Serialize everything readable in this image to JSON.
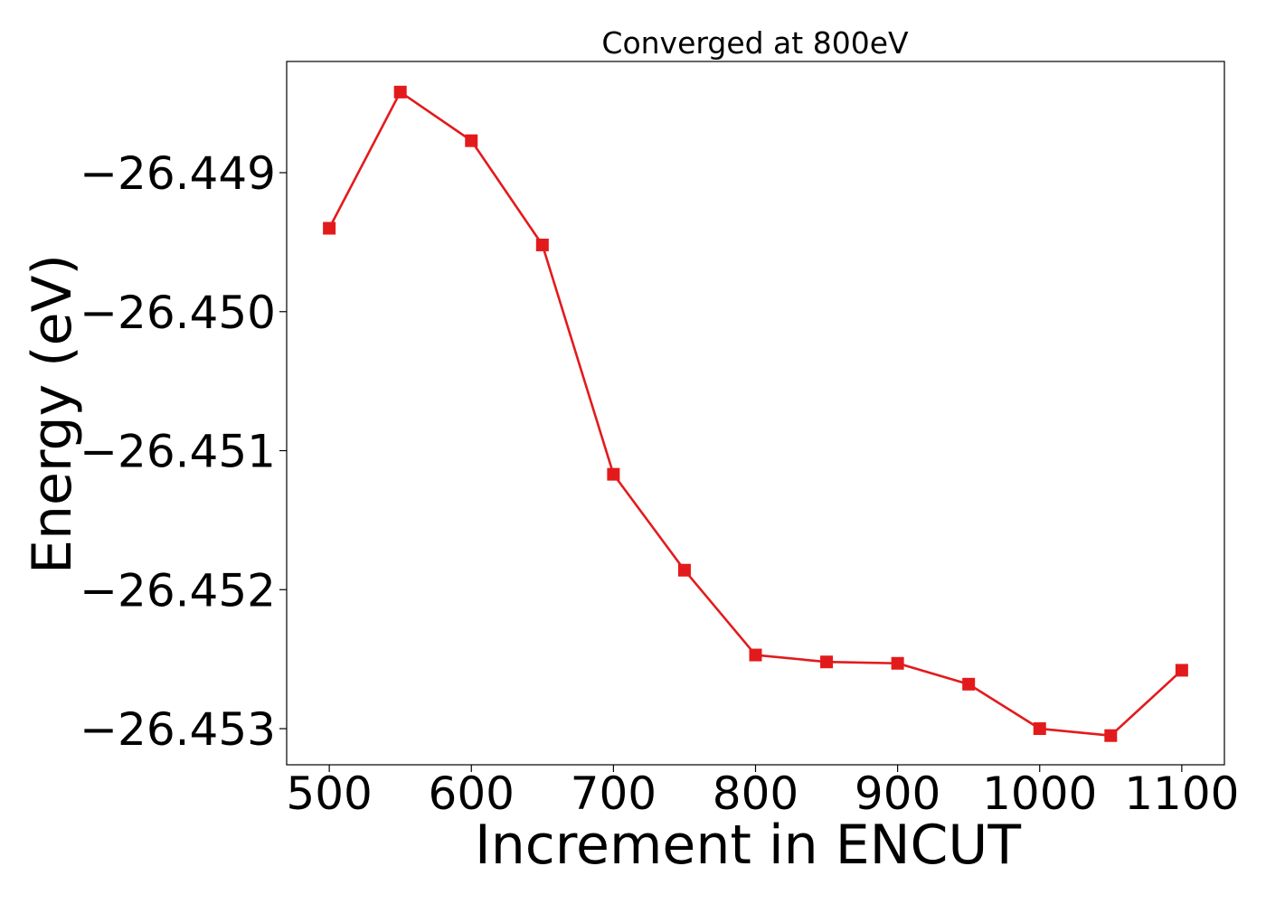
{
  "chart_data": {
    "type": "line",
    "title": "Converged at 800eV",
    "xlabel": "Increment in ENCUT",
    "ylabel": "Energy (eV)",
    "x_ticks": [
      "500",
      "600",
      "700",
      "800",
      "900",
      "1000",
      "1100"
    ],
    "y_ticks": [
      "−26.449",
      "−26.450",
      "−26.451",
      "−26.452",
      "−26.453"
    ],
    "xlim": [
      470,
      1130
    ],
    "ylim": [
      -26.45326,
      -26.4482
    ],
    "grid": false,
    "marker": "square",
    "colors": {
      "series": "#e31a1c"
    },
    "series": [
      {
        "x": [
          500,
          550,
          600,
          650,
          700,
          750,
          800,
          850,
          900,
          950,
          1000,
          1050,
          1100
        ],
        "values": [
          -26.4494,
          -26.44842,
          -26.44877,
          -26.44952,
          -26.45117,
          -26.45186,
          -26.45247,
          -26.45252,
          -26.45253,
          -26.45268,
          -26.453,
          -26.45305,
          -26.45258
        ]
      }
    ]
  }
}
